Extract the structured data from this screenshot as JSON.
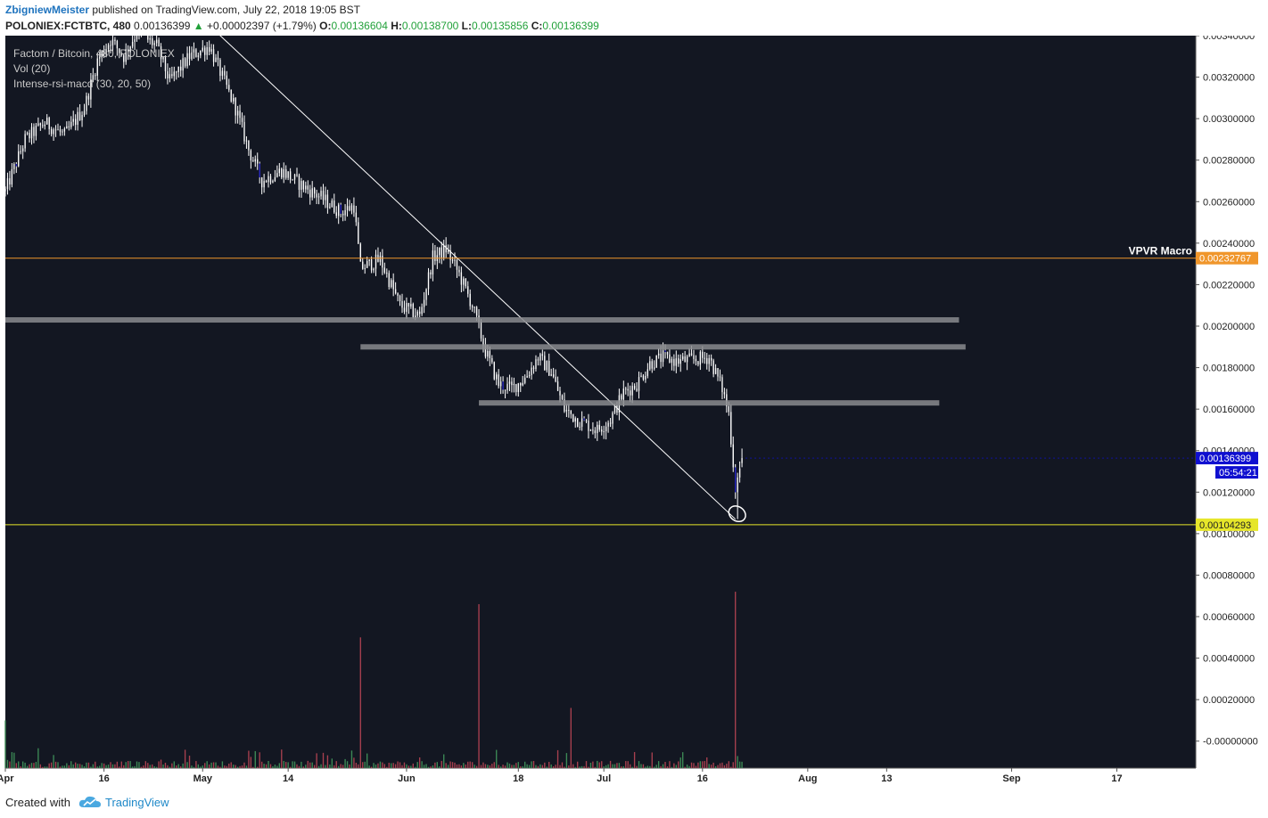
{
  "header": {
    "author": "ZbigniewMeister",
    "published_text": "published on TradingView.com, July 22, 2018 19:05 BST",
    "symbol": "POLONIEX:FCTBTC, 480",
    "last": "0.00136399",
    "change": "+0.00002397 (+1.79%)",
    "o_label": "O:",
    "o_val": "0.00136604",
    "h_label": "H:",
    "h_val": "0.00138700",
    "l_label": "L:",
    "l_val": "0.00135856",
    "c_label": "C:",
    "c_val": "0.00136399"
  },
  "footer": {
    "created_with": "Created with",
    "brand": "TradingView"
  },
  "colors": {
    "background": "#131722",
    "candle": "#ffffff",
    "candle_blue": "#1f1fbf",
    "vol_up": "#3d8a56",
    "vol_down": "#a8404f",
    "zone": "#8a8b8e",
    "vpvr": "#f0962b",
    "support": "#e6e62a",
    "price_tag": "#1010d0"
  },
  "chart_data": {
    "type": "candlestick",
    "legend": [
      "Factom / Bitcoin, 480, POLONIEX",
      "Vol (20)",
      "Intense-rsi-macd (30, 20, 50)"
    ],
    "y_ticks": [
      "0.00340000",
      "0.00320000",
      "0.00300000",
      "0.00280000",
      "0.00260000",
      "0.00240000",
      "0.00220000",
      "0.00200000",
      "0.00180000",
      "0.00160000",
      "0.00140000",
      "0.00120000",
      "0.00100000",
      "0.00080000",
      "0.00060000",
      "0.00040000",
      "0.00020000",
      "-0.00000000"
    ],
    "ylim": [
      -0.00013,
      0.0034
    ],
    "x_ticks": [
      "Apr",
      "16",
      "May",
      "14",
      "Jun",
      "18",
      "Jul",
      "16",
      "Aug",
      "13",
      "Sep",
      "17"
    ],
    "x_tick_dates": [
      "2018-04-01",
      "2018-04-16",
      "2018-05-01",
      "2018-05-14",
      "2018-06-01",
      "2018-06-18",
      "2018-07-01",
      "2018-07-16",
      "2018-08-01",
      "2018-08-13",
      "2018-09-01",
      "2018-09-17"
    ],
    "xlim": [
      "2018-04-01",
      "2018-09-29"
    ],
    "price_path": [
      [
        "2018-04-01",
        0.00265
      ],
      [
        "2018-04-04",
        0.0029
      ],
      [
        "2018-04-07",
        0.00298
      ],
      [
        "2018-04-10",
        0.00292
      ],
      [
        "2018-04-13",
        0.00305
      ],
      [
        "2018-04-15",
        0.00328
      ],
      [
        "2018-04-17",
        0.00338
      ],
      [
        "2018-04-19",
        0.0033
      ],
      [
        "2018-04-21",
        0.00342
      ],
      [
        "2018-04-24",
        0.00335
      ],
      [
        "2018-04-26",
        0.00318
      ],
      [
        "2018-04-29",
        0.0033
      ],
      [
        "2018-05-02",
        0.00335
      ],
      [
        "2018-05-04",
        0.0032
      ],
      [
        "2018-05-06",
        0.00305
      ],
      [
        "2018-05-08",
        0.00285
      ],
      [
        "2018-05-10",
        0.0027
      ],
      [
        "2018-05-13",
        0.00275
      ],
      [
        "2018-05-16",
        0.00268
      ],
      [
        "2018-05-19",
        0.00262
      ],
      [
        "2018-05-22",
        0.00255
      ],
      [
        "2018-05-24",
        0.00258
      ],
      [
        "2018-05-25",
        0.00228
      ],
      [
        "2018-05-28",
        0.00232
      ],
      [
        "2018-05-31",
        0.0021
      ],
      [
        "2018-06-03",
        0.00205
      ],
      [
        "2018-06-05",
        0.00233
      ],
      [
        "2018-06-07",
        0.00237
      ],
      [
        "2018-06-09",
        0.00225
      ],
      [
        "2018-06-11",
        0.0021
      ],
      [
        "2018-06-13",
        0.00188
      ],
      [
        "2018-06-15",
        0.00172
      ],
      [
        "2018-06-17",
        0.0017
      ],
      [
        "2018-06-19",
        0.00175
      ],
      [
        "2018-06-21",
        0.00185
      ],
      [
        "2018-06-23",
        0.00178
      ],
      [
        "2018-06-25",
        0.0016
      ],
      [
        "2018-06-27",
        0.00155
      ],
      [
        "2018-06-30",
        0.0015
      ],
      [
        "2018-07-02",
        0.00155
      ],
      [
        "2018-07-04",
        0.00168
      ],
      [
        "2018-07-06",
        0.00172
      ],
      [
        "2018-07-08",
        0.00182
      ],
      [
        "2018-07-10",
        0.00185
      ],
      [
        "2018-07-12",
        0.00183
      ],
      [
        "2018-07-15",
        0.00184
      ],
      [
        "2018-07-17",
        0.00185
      ],
      [
        "2018-07-19",
        0.0017
      ],
      [
        "2018-07-20",
        0.00158
      ],
      [
        "2018-07-21",
        0.00122
      ],
      [
        "2018-07-22",
        0.00136
      ]
    ],
    "volume_spikes": [
      [
        "2018-04-01",
        0.0001
      ],
      [
        "2018-05-25",
        0.0005
      ],
      [
        "2018-06-12",
        0.00066
      ],
      [
        "2018-06-26",
        0.00016
      ],
      [
        "2018-07-21",
        0.00072
      ]
    ],
    "annotations": [
      {
        "type": "trendline",
        "from": [
          "2018-05-03",
          0.00342
        ],
        "to": [
          "2018-07-21",
          0.00107
        ]
      },
      {
        "type": "zone",
        "from": "2018-04-01",
        "to": "2018-08-24",
        "y": 0.00203
      },
      {
        "type": "zone",
        "from": "2018-05-25",
        "to": "2018-08-25",
        "y": 0.0019
      },
      {
        "type": "zone",
        "from": "2018-06-12",
        "to": "2018-08-21",
        "y": 0.00163
      },
      {
        "type": "circle",
        "at": [
          "2018-07-21",
          0.00107
        ]
      }
    ],
    "hlines": [
      {
        "label": "VPVR Macro",
        "value": 0.00232767,
        "tag": "0.00232767"
      },
      {
        "label": "",
        "value": 0.00104293,
        "tag": "0.00104293"
      }
    ],
    "last_price_tag": "0.00136399",
    "countdown": "05:54:21"
  }
}
